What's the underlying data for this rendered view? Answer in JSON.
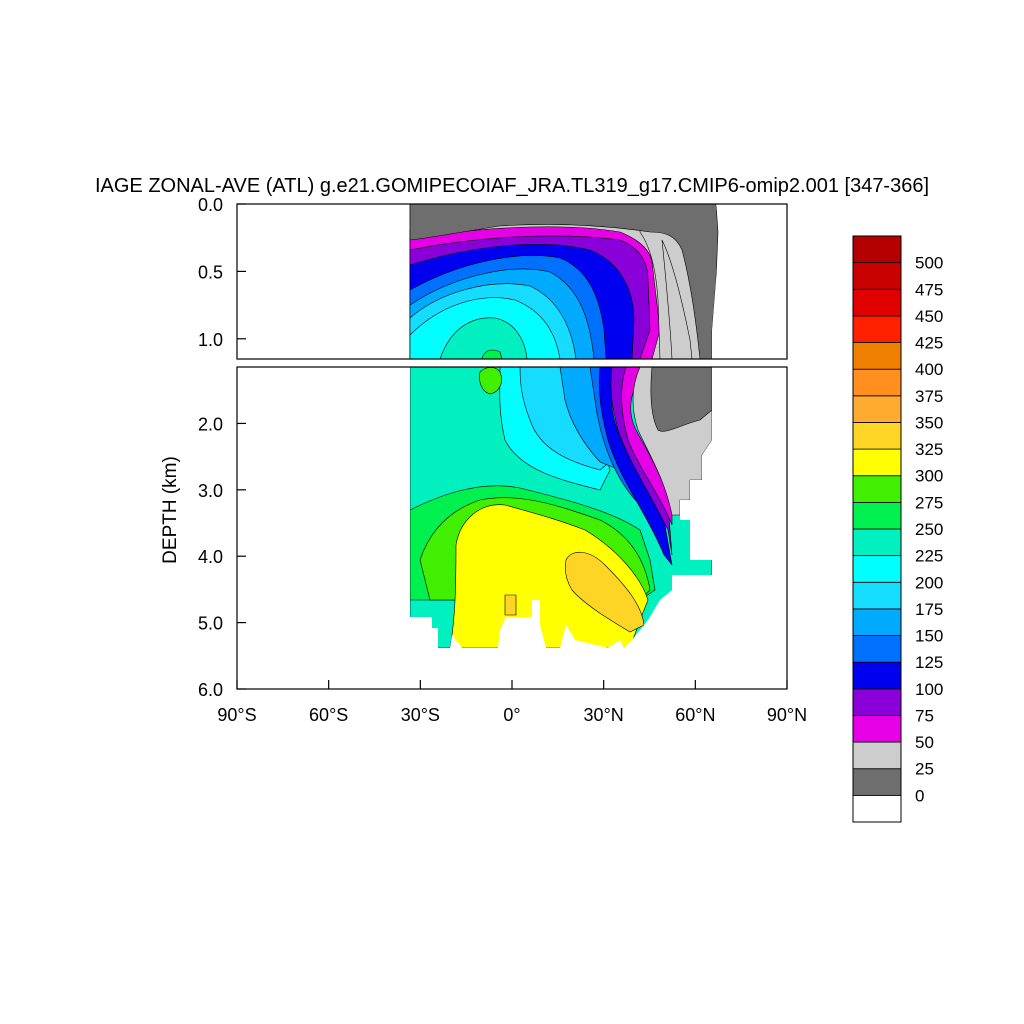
{
  "chart_data": {
    "type": "contour",
    "title": "IAGE ZONAL-AVE (ATL) g.e21.GOMIPECOIAF_JRA.TL319_g17.CMIP6-omip2.001 [347-366]",
    "ylabel": "DEPTH (km)",
    "xlabel": "",
    "x_ticks": [
      "90°S",
      "60°S",
      "30°S",
      "0°",
      "30°N",
      "60°N",
      "90°N"
    ],
    "x_tick_values": [
      -90,
      -60,
      -30,
      0,
      30,
      60,
      90
    ],
    "xlim": [
      -90,
      90
    ],
    "upper_panel": {
      "ylim": [
        0.0,
        1.15
      ],
      "y_ticks": [
        "0.0",
        "0.5",
        "1.0"
      ],
      "y_tick_values": [
        0.0,
        0.5,
        1.0
      ]
    },
    "lower_panel": {
      "ylim": [
        1.15,
        6.0
      ],
      "y_ticks": [
        "2.0",
        "3.0",
        "4.0",
        "5.0",
        "6.0"
      ],
      "y_tick_values": [
        2.0,
        3.0,
        4.0,
        5.0,
        6.0
      ]
    },
    "data_extent": {
      "lat_min": -34,
      "lat_max": 66,
      "max_depth_km": 5.4
    },
    "colorbar": {
      "levels": [
        "0",
        "25",
        "50",
        "75",
        "100",
        "125",
        "150",
        "175",
        "200",
        "225",
        "250",
        "275",
        "300",
        "325",
        "350",
        "375",
        "400",
        "425",
        "450",
        "475",
        "500"
      ],
      "colors": [
        "#ffffff",
        "#6e6e6e",
        "#cdcdcd",
        "#e600e6",
        "#8a00d8",
        "#0000f0",
        "#0070ff",
        "#00aaff",
        "#16dcff",
        "#00ffff",
        "#00f0c0",
        "#00f050",
        "#40f000",
        "#ffff00",
        "#ffd525",
        "#ffaa30",
        "#ff9020",
        "#f08000",
        "#ff2000",
        "#e00000",
        "#c80000",
        "#b40000"
      ]
    },
    "regions": [
      {
        "value_range": "300-325",
        "location": "core 10°S-40°N, 3.2-5.4 km"
      },
      {
        "value_range": "325-350",
        "location": "15-45°N, 4.0-5.0 km"
      },
      {
        "value_range": "0-25",
        "location": "surface and 50-65°N upper 1.8 km"
      }
    ]
  }
}
